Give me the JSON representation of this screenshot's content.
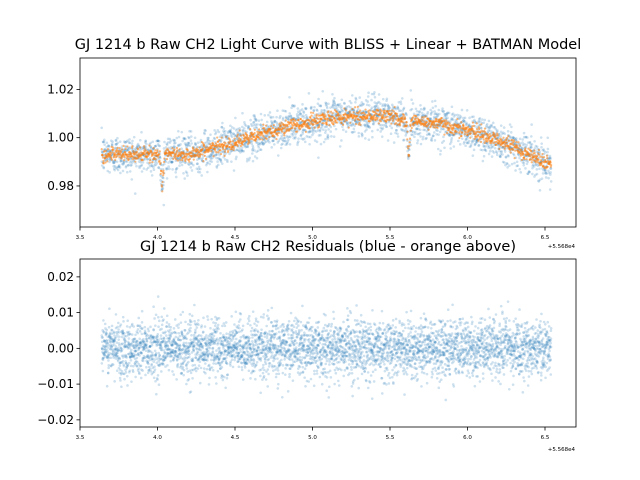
{
  "chart_data": [
    {
      "type": "scatter",
      "title": "GJ 1214 b Raw CH2 Light Curve with BLISS + Linear + BATMAN Model",
      "xlabel": "",
      "ylabel": "",
      "x_offset_label": "+5.568e4",
      "xlim": [
        3.5,
        6.7
      ],
      "ylim": [
        0.963,
        1.033
      ],
      "x_ticks": [
        3.5,
        4.0,
        4.5,
        5.0,
        5.5,
        6.0,
        6.5
      ],
      "x_tick_labels": [
        "3.5",
        "4.0",
        "4.5",
        "5.0",
        "5.5",
        "6.0",
        "6.5"
      ],
      "y_ticks": [
        0.98,
        1.0,
        1.02
      ],
      "y_tick_labels": [
        "0.98",
        "1.00",
        "1.02"
      ],
      "grid": false,
      "x_range_of_data": [
        3.64,
        6.54
      ],
      "series": [
        {
          "color": "#1f77b4",
          "trend": {
            "x": [
              3.64,
              3.9,
              4.2,
              4.5,
              4.8,
              5.1,
              5.3,
              5.5,
              5.6,
              5.8,
              6.0,
              6.2,
              6.4,
              6.54
            ],
            "y": [
              0.993,
              0.993,
              0.993,
              0.998,
              1.004,
              1.008,
              1.009,
              1.009,
              1.007,
              1.006,
              1.003,
              0.999,
              0.993,
              0.989
            ]
          },
          "scatter_sigma": 0.004,
          "transit": {
            "center": 4.03,
            "depth": 0.014,
            "half_width": 0.015
          },
          "eclipse": {
            "center": 5.62,
            "depth": 0.014,
            "half_width": 0.015
          }
        },
        {
          "color": "#ff7f0e",
          "trend": {
            "x": [
              3.64,
              3.9,
              4.2,
              4.5,
              4.8,
              5.1,
              5.3,
              5.5,
              5.6,
              5.8,
              6.0,
              6.2,
              6.4,
              6.54
            ],
            "y": [
              0.993,
              0.993,
              0.993,
              0.998,
              1.004,
              1.008,
              1.009,
              1.009,
              1.007,
              1.006,
              1.003,
              0.999,
              0.993,
              0.989
            ]
          },
          "scatter_sigma": 0.0015,
          "transit": {
            "center": 4.03,
            "depth": 0.014,
            "half_width": 0.015
          },
          "eclipse": {
            "center": 5.62,
            "depth": 0.014,
            "half_width": 0.015
          }
        }
      ]
    },
    {
      "type": "scatter",
      "title": "GJ 1214 b Raw CH2 Residuals (blue - orange above)",
      "xlabel": "",
      "ylabel": "",
      "x_offset_label": "+5.568e4",
      "xlim": [
        3.5,
        6.7
      ],
      "ylim": [
        -0.022,
        0.025
      ],
      "x_ticks": [
        3.5,
        4.0,
        4.5,
        5.0,
        5.5,
        6.0,
        6.5
      ],
      "x_tick_labels": [
        "3.5",
        "4.0",
        "4.5",
        "5.0",
        "5.5",
        "6.0",
        "6.5"
      ],
      "y_ticks": [
        -0.02,
        -0.01,
        0.0,
        0.01,
        0.02
      ],
      "y_tick_labels": [
        "−0.02",
        "−0.01",
        "0.00",
        "0.01",
        "0.02"
      ],
      "grid": false,
      "x_range_of_data": [
        3.64,
        6.54
      ],
      "series": [
        {
          "color": "#1f77b4",
          "center": 0.0,
          "scatter_sigma": 0.004
        }
      ]
    }
  ]
}
